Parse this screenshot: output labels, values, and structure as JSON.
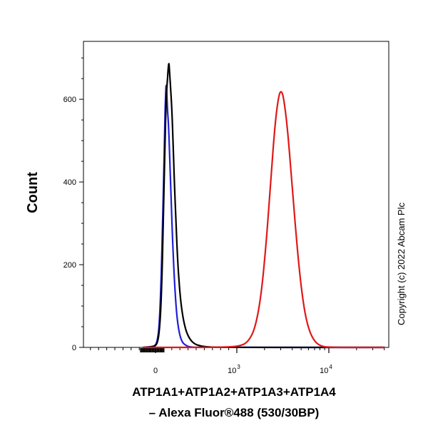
{
  "chart_data": {
    "type": "line",
    "title": "",
    "xlabel_line1": "ATP1A1+ATP1A2+ATP1A3+ATP1A4",
    "xlabel_line2": "– Alexa Fluor®488 (530/30BP)",
    "ylabel": "Count",
    "copyright": "Copyright (c) 2022 Abcam Plc",
    "x_scale": "biexponential",
    "ylim": [
      0,
      740
    ],
    "y_ticks": [
      0,
      200,
      400,
      600
    ],
    "x_ticks": [
      {
        "value": 0,
        "label": "0"
      },
      {
        "value": 1000,
        "label": "10",
        "exp": "3"
      },
      {
        "value": 10000,
        "label": "10",
        "exp": "4"
      }
    ],
    "grid": false,
    "legend": "none",
    "series": [
      {
        "color": "#1f1fd6",
        "points": [
          [
            -150,
            0
          ],
          [
            -40,
            2
          ],
          [
            0,
            5
          ],
          [
            20,
            15
          ],
          [
            40,
            40
          ],
          [
            55,
            90
          ],
          [
            70,
            170
          ],
          [
            85,
            280
          ],
          [
            100,
            400
          ],
          [
            112,
            520
          ],
          [
            122,
            600
          ],
          [
            130,
            640
          ],
          [
            138,
            620
          ],
          [
            148,
            570
          ],
          [
            160,
            540
          ],
          [
            175,
            460
          ],
          [
            192,
            360
          ],
          [
            210,
            260
          ],
          [
            230,
            170
          ],
          [
            252,
            100
          ],
          [
            275,
            55
          ],
          [
            300,
            28
          ],
          [
            330,
            12
          ],
          [
            370,
            5
          ],
          [
            420,
            1
          ],
          [
            500,
            0
          ],
          [
            40000,
            0
          ]
        ]
      },
      {
        "color": "#000000",
        "points": [
          [
            -150,
            0
          ],
          [
            -40,
            1
          ],
          [
            0,
            4
          ],
          [
            25,
            12
          ],
          [
            45,
            35
          ],
          [
            62,
            80
          ],
          [
            78,
            160
          ],
          [
            92,
            270
          ],
          [
            105,
            390
          ],
          [
            118,
            500
          ],
          [
            128,
            580
          ],
          [
            138,
            625
          ],
          [
            148,
            650
          ],
          [
            158,
            680
          ],
          [
            166,
            690
          ],
          [
            175,
            660
          ],
          [
            188,
            620
          ],
          [
            200,
            580
          ],
          [
            215,
            500
          ],
          [
            232,
            400
          ],
          [
            252,
            300
          ],
          [
            275,
            200
          ],
          [
            300,
            130
          ],
          [
            330,
            80
          ],
          [
            370,
            42
          ],
          [
            420,
            20
          ],
          [
            480,
            8
          ],
          [
            560,
            3
          ],
          [
            650,
            1
          ],
          [
            800,
            0
          ],
          [
            40000,
            0
          ]
        ]
      },
      {
        "color": "#e01818",
        "points": [
          [
            -150,
            0
          ],
          [
            800,
            0
          ],
          [
            1100,
            3
          ],
          [
            1350,
            15
          ],
          [
            1600,
            50
          ],
          [
            1850,
            130
          ],
          [
            2100,
            260
          ],
          [
            2350,
            410
          ],
          [
            2600,
            540
          ],
          [
            2850,
            610
          ],
          [
            3050,
            622
          ],
          [
            3250,
            600
          ],
          [
            3550,
            530
          ],
          [
            3900,
            420
          ],
          [
            4300,
            300
          ],
          [
            4800,
            180
          ],
          [
            5400,
            90
          ],
          [
            6100,
            40
          ],
          [
            7000,
            14
          ],
          [
            8200,
            3
          ],
          [
            10000,
            0
          ],
          [
            40000,
            0
          ]
        ]
      }
    ]
  }
}
